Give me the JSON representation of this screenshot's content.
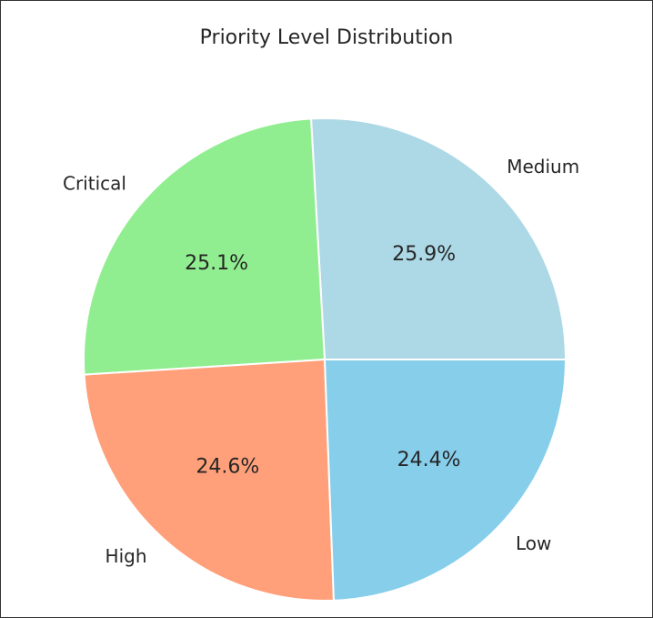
{
  "chart_data": {
    "type": "pie",
    "title": "Priority Level Distribution",
    "categories": [
      "Medium",
      "Critical",
      "High",
      "Low"
    ],
    "values": [
      25.9,
      25.1,
      24.6,
      24.4
    ],
    "value_labels": [
      "25.9%",
      "25.1%",
      "24.6%",
      "24.4%"
    ],
    "colors": [
      "#add8e6",
      "#90ee90",
      "#ffa07a",
      "#87ceeb"
    ],
    "start_angle_deg": 0,
    "direction": "counterclockwise",
    "legend": "none"
  }
}
